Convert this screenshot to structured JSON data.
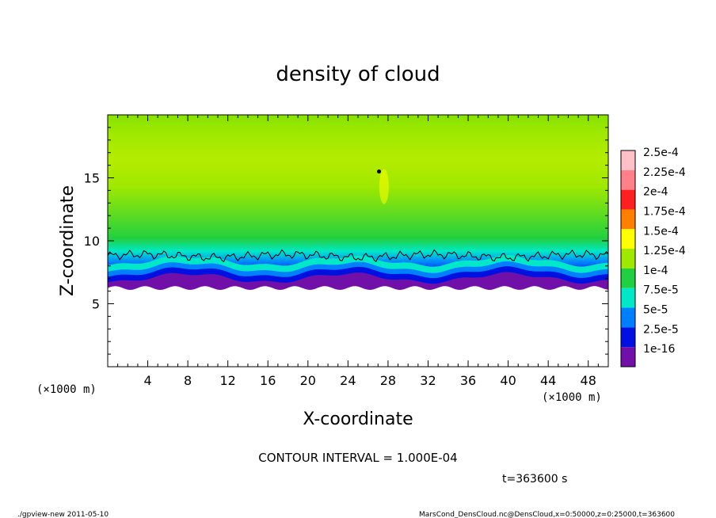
{
  "chart_data": {
    "type": "heatmap",
    "title": "density of cloud",
    "xlabel": "X-coordinate",
    "ylabel": "Z-coordinate",
    "x_unit": "(×1000 m)",
    "y_unit": "(×1000 m)",
    "xlim": [
      0,
      50
    ],
    "ylim": [
      0,
      20
    ],
    "x_ticks": [
      4,
      8,
      12,
      16,
      20,
      24,
      28,
      32,
      36,
      40,
      44,
      48
    ],
    "y_ticks": [
      5,
      10,
      15
    ],
    "colorbar": {
      "labels": [
        "2.5e-4",
        "2.25e-4",
        "2e-4",
        "1.75e-4",
        "1.5e-4",
        "1.25e-4",
        "1e-4",
        "7.5e-5",
        "5e-5",
        "2.5e-5",
        "1e-16"
      ],
      "levels": [
        0.00025,
        0.000225,
        0.0002,
        0.000175,
        0.00015,
        0.000125,
        0.0001,
        7.5e-05,
        5e-05,
        2.5e-05,
        1e-16
      ],
      "colors": [
        "#ffc0c8",
        "#ff8088",
        "#ff2020",
        "#ff8000",
        "#ffff00",
        "#a0e800",
        "#20d040",
        "#00e8c8",
        "#0080ff",
        "#0010e0",
        "#7010a8"
      ]
    },
    "contour_interval": "CONTOUR INTERVAL = 1.000E-04",
    "contour_level": 0.0001,
    "contour_z_approx": 8.8,
    "cloud_base_z_approx": 6.5,
    "time_label": "t=363600 s"
  },
  "footer": {
    "left": "./gpview-new  2011-05-10",
    "right": "MarsCond_DensCloud.nc@DensCloud,x=0:50000,z=0:25000,t=363600"
  }
}
